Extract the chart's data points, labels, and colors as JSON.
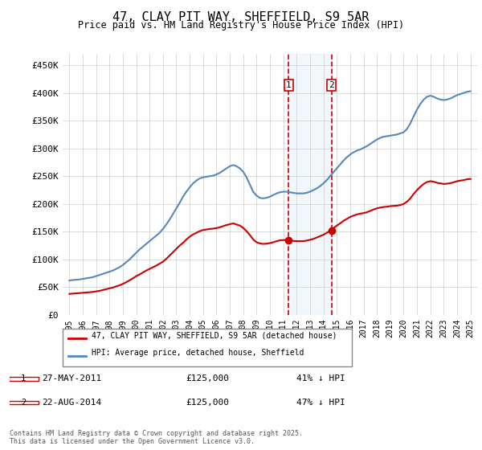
{
  "title": "47, CLAY PIT WAY, SHEFFIELD, S9 5AR",
  "subtitle": "Price paid vs. HM Land Registry's House Price Index (HPI)",
  "ylabel": "",
  "ylim": [
    0,
    470000
  ],
  "yticks": [
    0,
    50000,
    100000,
    150000,
    200000,
    250000,
    300000,
    350000,
    400000,
    450000
  ],
  "ytick_labels": [
    "£0",
    "£50K",
    "£100K",
    "£150K",
    "£200K",
    "£250K",
    "£300K",
    "£350K",
    "£400K",
    "£450K"
  ],
  "xlim_start": 1994.5,
  "xlim_end": 2025.5,
  "xticks": [
    1995,
    1996,
    1997,
    1998,
    1999,
    2000,
    2001,
    2002,
    2003,
    2004,
    2005,
    2006,
    2007,
    2008,
    2009,
    2010,
    2011,
    2012,
    2013,
    2014,
    2015,
    2016,
    2017,
    2018,
    2019,
    2020,
    2021,
    2022,
    2023,
    2024,
    2025
  ],
  "legend_label_red": "47, CLAY PIT WAY, SHEFFIELD, S9 5AR (detached house)",
  "legend_label_blue": "HPI: Average price, detached house, Sheffield",
  "purchase1_date": "27-MAY-2011",
  "purchase1_year": 2011.4,
  "purchase1_price": 125000,
  "purchase1_pct": "41%",
  "purchase2_date": "22-AUG-2014",
  "purchase2_year": 2014.6,
  "purchase2_price": 125000,
  "purchase2_pct": "47%",
  "footer": "Contains HM Land Registry data © Crown copyright and database right 2025.\nThis data is licensed under the Open Government Licence v3.0.",
  "red_color": "#cc0000",
  "blue_color": "#5588bb",
  "blue_fill_color": "#aaccee",
  "grid_color": "#cccccc",
  "background_color": "#f8f8f8",
  "hpi_years": [
    1995,
    1995.25,
    1995.5,
    1995.75,
    1996,
    1996.25,
    1996.5,
    1996.75,
    1997,
    1997.25,
    1997.5,
    1997.75,
    1998,
    1998.25,
    1998.5,
    1998.75,
    1999,
    1999.25,
    1999.5,
    1999.75,
    2000,
    2000.25,
    2000.5,
    2000.75,
    2001,
    2001.25,
    2001.5,
    2001.75,
    2002,
    2002.25,
    2002.5,
    2002.75,
    2003,
    2003.25,
    2003.5,
    2003.75,
    2004,
    2004.25,
    2004.5,
    2004.75,
    2005,
    2005.25,
    2005.5,
    2005.75,
    2006,
    2006.25,
    2006.5,
    2006.75,
    2007,
    2007.25,
    2007.5,
    2007.75,
    2008,
    2008.25,
    2008.5,
    2008.75,
    2009,
    2009.25,
    2009.5,
    2009.75,
    2010,
    2010.25,
    2010.5,
    2010.75,
    2011,
    2011.25,
    2011.5,
    2011.75,
    2012,
    2012.25,
    2012.5,
    2012.75,
    2013,
    2013.25,
    2013.5,
    2013.75,
    2014,
    2014.25,
    2014.5,
    2014.75,
    2015,
    2015.25,
    2015.5,
    2015.75,
    2016,
    2016.25,
    2016.5,
    2016.75,
    2017,
    2017.25,
    2017.5,
    2017.75,
    2018,
    2018.25,
    2018.5,
    2018.75,
    2019,
    2019.25,
    2019.5,
    2019.75,
    2020,
    2020.25,
    2020.5,
    2020.75,
    2021,
    2021.25,
    2021.5,
    2021.75,
    2022,
    2022.25,
    2022.5,
    2022.75,
    2023,
    2023.25,
    2023.5,
    2023.75,
    2024,
    2024.25,
    2024.5,
    2024.75,
    2025
  ],
  "hpi_values": [
    62000,
    63000,
    63500,
    64000,
    65000,
    66000,
    67000,
    68000,
    70000,
    72000,
    74000,
    76000,
    78000,
    80000,
    83000,
    86000,
    90000,
    95000,
    100000,
    106000,
    112000,
    118000,
    123000,
    128000,
    133000,
    138000,
    143000,
    148000,
    155000,
    163000,
    172000,
    182000,
    192000,
    202000,
    213000,
    222000,
    230000,
    237000,
    242000,
    246000,
    248000,
    249000,
    250000,
    251000,
    253000,
    256000,
    260000,
    264000,
    268000,
    270000,
    268000,
    264000,
    258000,
    248000,
    235000,
    222000,
    215000,
    211000,
    210000,
    211000,
    213000,
    216000,
    219000,
    221000,
    222000,
    222000,
    221000,
    220000,
    219000,
    219000,
    219000,
    220000,
    222000,
    225000,
    228000,
    232000,
    237000,
    243000,
    250000,
    257000,
    264000,
    271000,
    278000,
    284000,
    289000,
    293000,
    296000,
    298000,
    301000,
    304000,
    308000,
    312000,
    316000,
    319000,
    321000,
    322000,
    323000,
    324000,
    325000,
    327000,
    329000,
    335000,
    345000,
    358000,
    370000,
    380000,
    388000,
    393000,
    395000,
    393000,
    390000,
    388000,
    387000,
    388000,
    390000,
    393000,
    396000,
    398000,
    400000,
    402000,
    403000
  ],
  "red_years": [
    1995,
    1995.25,
    1995.5,
    1995.75,
    1996,
    1996.25,
    1996.5,
    1996.75,
    1997,
    1997.25,
    1997.5,
    1997.75,
    1998,
    1998.25,
    1998.5,
    1998.75,
    1999,
    1999.25,
    1999.5,
    1999.75,
    2000,
    2000.25,
    2000.5,
    2000.75,
    2001,
    2001.25,
    2001.5,
    2001.75,
    2002,
    2002.25,
    2002.5,
    2002.75,
    2003,
    2003.25,
    2003.5,
    2003.75,
    2004,
    2004.25,
    2004.5,
    2004.75,
    2005,
    2005.25,
    2005.5,
    2005.75,
    2006,
    2006.25,
    2006.5,
    2006.75,
    2007,
    2007.25,
    2007.5,
    2007.75,
    2008,
    2008.25,
    2008.5,
    2008.75,
    2009,
    2009.25,
    2009.5,
    2009.75,
    2010,
    2010.25,
    2010.5,
    2010.75,
    2011,
    2011.25,
    2011.5,
    2011.75,
    2012,
    2012.25,
    2012.5,
    2012.75,
    2013,
    2013.25,
    2013.5,
    2013.75,
    2014,
    2014.25,
    2014.5,
    2014.75,
    2015,
    2015.25,
    2015.5,
    2015.75,
    2016,
    2016.25,
    2016.5,
    2016.75,
    2017,
    2017.25,
    2017.5,
    2017.75,
    2018,
    2018.25,
    2018.5,
    2018.75,
    2019,
    2019.25,
    2019.5,
    2019.75,
    2020,
    2020.25,
    2020.5,
    2020.75,
    2021,
    2021.25,
    2021.5,
    2021.75,
    2022,
    2022.25,
    2022.5,
    2022.75,
    2023,
    2023.25,
    2023.5,
    2023.75,
    2024,
    2024.25,
    2024.5,
    2024.75,
    2025
  ],
  "red_values": [
    38000,
    38500,
    39000,
    39500,
    40000,
    40500,
    41000,
    41500,
    42500,
    43500,
    45000,
    46500,
    48000,
    49500,
    51500,
    53500,
    56000,
    59000,
    62500,
    66000,
    70000,
    73000,
    76500,
    80000,
    83000,
    86000,
    89000,
    92500,
    96000,
    101000,
    107000,
    113000,
    119000,
    125000,
    130000,
    136000,
    141000,
    145000,
    148000,
    151000,
    153000,
    154000,
    155000,
    155500,
    156500,
    158000,
    160000,
    162000,
    163500,
    165000,
    163000,
    161000,
    157000,
    151000,
    144000,
    136000,
    131000,
    129000,
    128000,
    128500,
    129500,
    131000,
    133000,
    134500,
    135000,
    135000,
    134500,
    133500,
    133000,
    133000,
    133000,
    134000,
    135500,
    137000,
    139500,
    142000,
    144500,
    148000,
    152000,
    156500,
    161000,
    165000,
    169500,
    173000,
    176500,
    179000,
    181000,
    182500,
    183500,
    185000,
    187500,
    190000,
    192000,
    193500,
    194500,
    195000,
    196000,
    196500,
    197000,
    198000,
    200000,
    204000,
    210000,
    218000,
    225000,
    231000,
    236000,
    239500,
    241000,
    240000,
    238000,
    237000,
    236000,
    236500,
    237500,
    239000,
    241000,
    242000,
    243000,
    244500,
    245000
  ]
}
